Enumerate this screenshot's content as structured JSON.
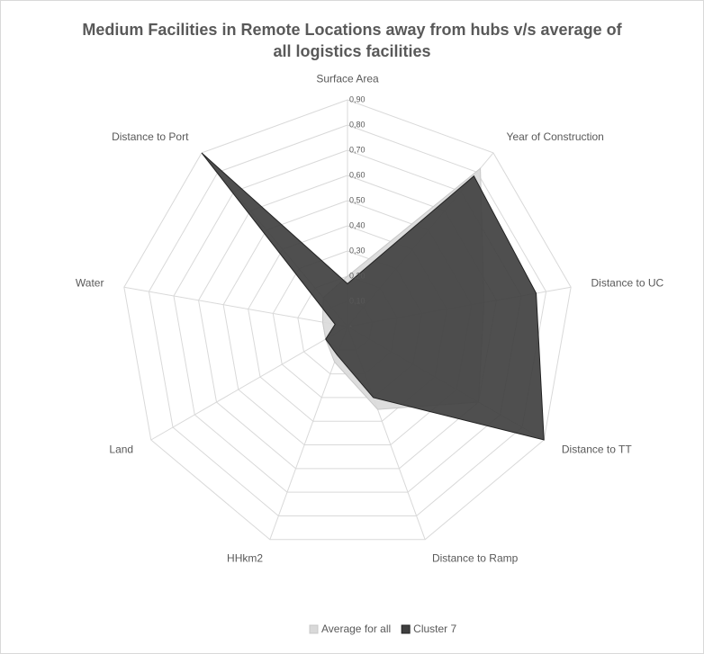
{
  "chart_data": {
    "type": "radar",
    "title": "Medium Facilities in Remote Locations away from hubs v/s average of all logistics facilities",
    "categories": [
      "Surface Area",
      "Year of Construction",
      "Distance to UC",
      "Distance to TT",
      "Distance to Ramp",
      "HHkm2",
      "Land",
      "Water",
      "Distance to Port"
    ],
    "series": [
      {
        "name": "Average for all",
        "color": "#d9d9d9",
        "values": [
          0.2,
          0.82,
          0.55,
          0.6,
          0.35,
          0.15,
          0.1,
          0.1,
          0.15
        ]
      },
      {
        "name": "Cluster 7",
        "color": "#404040",
        "values": [
          0.17,
          0.78,
          0.76,
          0.9,
          0.3,
          0.12,
          0.1,
          0.05,
          0.9
        ]
      }
    ],
    "ylim": [
      0,
      0.9
    ],
    "yticks": [
      {
        "value": 0,
        "label": "-"
      },
      {
        "value": 0.1,
        "label": "0,10"
      },
      {
        "value": 0.2,
        "label": "0,20"
      },
      {
        "value": 0.3,
        "label": "0,30"
      },
      {
        "value": 0.4,
        "label": "0,40"
      },
      {
        "value": 0.5,
        "label": "0,50"
      },
      {
        "value": 0.6,
        "label": "0,60"
      },
      {
        "value": 0.7,
        "label": "0,70"
      },
      {
        "value": 0.8,
        "label": "0,80"
      },
      {
        "value": 0.9,
        "label": "0,90"
      }
    ],
    "grid": true,
    "legend": "bottom"
  }
}
